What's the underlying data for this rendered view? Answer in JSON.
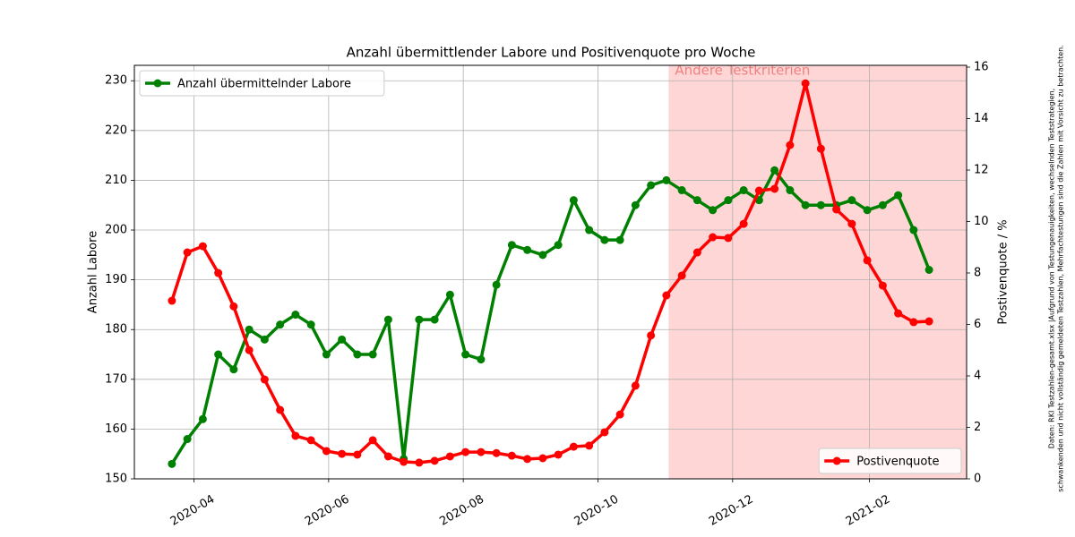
{
  "chart_data": {
    "type": "line",
    "title": "Anzahl übermittlender Labore und Positivenquote pro Woche",
    "ylabel": "Anzahl Labore",
    "y2label": "Postivenquote / %",
    "note": [
      "Daten: RKI Testzahlen-gesamt.xlsx |Aufgrund von Testungenauigkeiten, wechselnden Teststrategien,",
      "schwankenden und nicht vollständig gemeldeten Testzahlen, Mehrfachtestungen sind die Zahlen mit Vorsicht zu betrachten."
    ],
    "shaded_region": {
      "from": "2020-11-02",
      "label": "Andere Testkriterien",
      "color": "#ffd6d6",
      "label_color": "#f08080"
    },
    "x": [
      "2020-03-22",
      "2020-03-29",
      "2020-04-05",
      "2020-04-12",
      "2020-04-19",
      "2020-04-26",
      "2020-05-03",
      "2020-05-10",
      "2020-05-17",
      "2020-05-24",
      "2020-05-31",
      "2020-06-07",
      "2020-06-14",
      "2020-06-21",
      "2020-06-28",
      "2020-07-05",
      "2020-07-12",
      "2020-07-19",
      "2020-07-26",
      "2020-08-02",
      "2020-08-09",
      "2020-08-16",
      "2020-08-23",
      "2020-08-30",
      "2020-09-06",
      "2020-09-13",
      "2020-09-20",
      "2020-09-27",
      "2020-10-04",
      "2020-10-11",
      "2020-10-18",
      "2020-10-25",
      "2020-11-01",
      "2020-11-08",
      "2020-11-15",
      "2020-11-22",
      "2020-11-29",
      "2020-12-06",
      "2020-12-13",
      "2020-12-20",
      "2020-12-27",
      "2021-01-03",
      "2021-01-10",
      "2021-01-17",
      "2021-01-24",
      "2021-01-31",
      "2021-02-07",
      "2021-02-14",
      "2021-02-21",
      "2021-02-28"
    ],
    "xlim": [
      "2020-03-05",
      "2021-03-17"
    ],
    "xticks": [
      {
        "value": "2020-04-01",
        "label": "2020-04"
      },
      {
        "value": "2020-06-01",
        "label": "2020-06"
      },
      {
        "value": "2020-08-01",
        "label": "2020-08"
      },
      {
        "value": "2020-10-01",
        "label": "2020-10"
      },
      {
        "value": "2020-12-01",
        "label": "2020-12"
      },
      {
        "value": "2021-02-01",
        "label": "2021-02"
      }
    ],
    "ylim": [
      150,
      233.1
    ],
    "yticks": [
      150,
      160,
      170,
      180,
      190,
      200,
      210,
      220,
      230
    ],
    "y2lim": [
      0,
      16.07
    ],
    "y2ticks": [
      0,
      2,
      4,
      6,
      8,
      10,
      12,
      14,
      16
    ],
    "grid": true,
    "series": [
      {
        "name": "Anzahl übermittelnder Labore",
        "color": "#008000",
        "legend": "upper left",
        "values": [
          153,
          158,
          162,
          175,
          172,
          180,
          178,
          181,
          183,
          181,
          175,
          178,
          175,
          175,
          182,
          154,
          182,
          182,
          187,
          175,
          174,
          189,
          197,
          196,
          195,
          197,
          206,
          200,
          198,
          198,
          205,
          209,
          210,
          208,
          206,
          204,
          206,
          208,
          206,
          212,
          208,
          205,
          205,
          205,
          206,
          204,
          205,
          207,
          200,
          192
        ]
      },
      {
        "name": "Postivenquote",
        "color": "#ff0000",
        "axis": "y2",
        "legend": "lower right",
        "values": [
          6.92,
          8.8,
          9.04,
          8.0,
          6.7,
          5.0,
          3.86,
          2.68,
          1.67,
          1.5,
          1.08,
          0.97,
          0.94,
          1.5,
          0.87,
          0.66,
          0.63,
          0.7,
          0.87,
          1.04,
          1.04,
          1.0,
          0.9,
          0.77,
          0.8,
          0.94,
          1.25,
          1.29,
          1.81,
          2.5,
          3.62,
          5.57,
          7.13,
          7.9,
          8.8,
          9.39,
          9.36,
          9.91,
          11.2,
          11.27,
          12.97,
          15.37,
          12.83,
          10.47,
          9.91,
          8.49,
          7.51,
          6.43,
          6.09,
          6.12
        ]
      }
    ]
  }
}
